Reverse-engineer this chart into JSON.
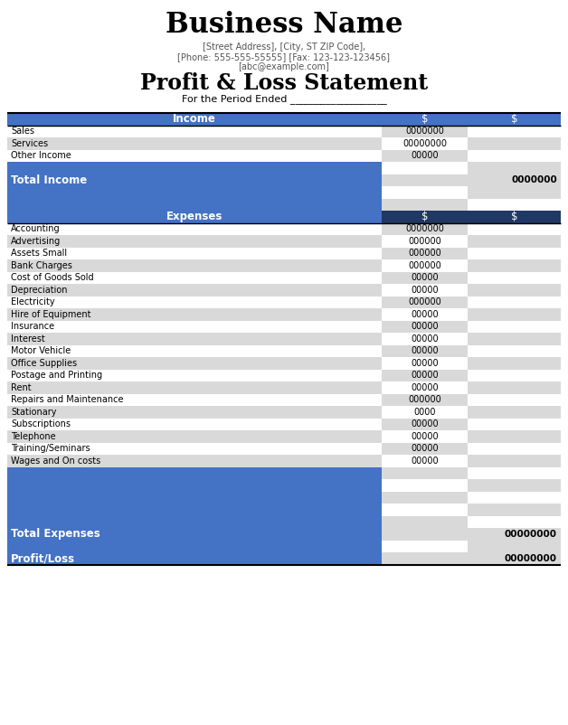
{
  "title": "Business Name",
  "address1": "[Street Address], [City, ST ZIP Code],",
  "address2": "[Phone: 555-555-55555] [Fax: 123-123-123456]",
  "address3": "[abc@example.com]",
  "subtitle": "Profit & Loss Statement",
  "period": "For the Period Ended ___________________",
  "income_header": "Income",
  "income_col1": "$",
  "income_col2": "$",
  "income_rows": [
    {
      "label": "Sales",
      "col1": "0000000",
      "col2": ""
    },
    {
      "label": "Services",
      "col1": "00000000",
      "col2": ""
    },
    {
      "label": "Other Income",
      "col1": "00000",
      "col2": ""
    }
  ],
  "total_income_label": "Total Income",
  "total_income_value": "0000000",
  "expenses_header": "Expenses",
  "expenses_col1": "$",
  "expenses_col2": "$",
  "expense_rows": [
    {
      "label": "Accounting",
      "col1": "0000000",
      "col2": ""
    },
    {
      "label": "Advertising",
      "col1": "000000",
      "col2": ""
    },
    {
      "label": "Assets Small",
      "col1": "000000",
      "col2": ""
    },
    {
      "label": "Bank Charges",
      "col1": "000000",
      "col2": ""
    },
    {
      "label": "Cost of Goods Sold",
      "col1": "00000",
      "col2": ""
    },
    {
      "label": "Depreciation",
      "col1": "00000",
      "col2": ""
    },
    {
      "label": "Electricity",
      "col1": "000000",
      "col2": ""
    },
    {
      "label": "Hire of Equipment",
      "col1": "00000",
      "col2": ""
    },
    {
      "label": "Insurance",
      "col1": "00000",
      "col2": ""
    },
    {
      "label": "Interest",
      "col1": "00000",
      "col2": ""
    },
    {
      "label": "Motor Vehicle",
      "col1": "00000",
      "col2": ""
    },
    {
      "label": "Office Supplies",
      "col1": "00000",
      "col2": ""
    },
    {
      "label": "Postage and Printing",
      "col1": "00000",
      "col2": ""
    },
    {
      "label": "Rent",
      "col1": "00000",
      "col2": ""
    },
    {
      "label": "Repairs and Maintenance",
      "col1": "000000",
      "col2": ""
    },
    {
      "label": "Stationary",
      "col1": "0000",
      "col2": ""
    },
    {
      "label": "Subscriptions",
      "col1": "00000",
      "col2": ""
    },
    {
      "label": "Telephone",
      "col1": "00000",
      "col2": ""
    },
    {
      "label": "Training/Seminars",
      "col1": "00000",
      "col2": ""
    },
    {
      "label": "Wages and On costs",
      "col1": "00000",
      "col2": ""
    }
  ],
  "expense_blank_rows": 5,
  "total_expenses_label": "Total Expenses",
  "total_expenses_value": "00000000",
  "profit_loss_label": "Profit/Loss",
  "profit_loss_value": "00000000",
  "blue_color": "#4472C4",
  "dark_blue_color": "#1F3864",
  "light_gray": "#D9D9D9",
  "white": "#FFFFFF",
  "text_white": "#FFFFFF",
  "text_black": "#000000",
  "header_bg": "#4472C4",
  "expenses_header_bg": "#1F3864",
  "address_color": "#555555"
}
